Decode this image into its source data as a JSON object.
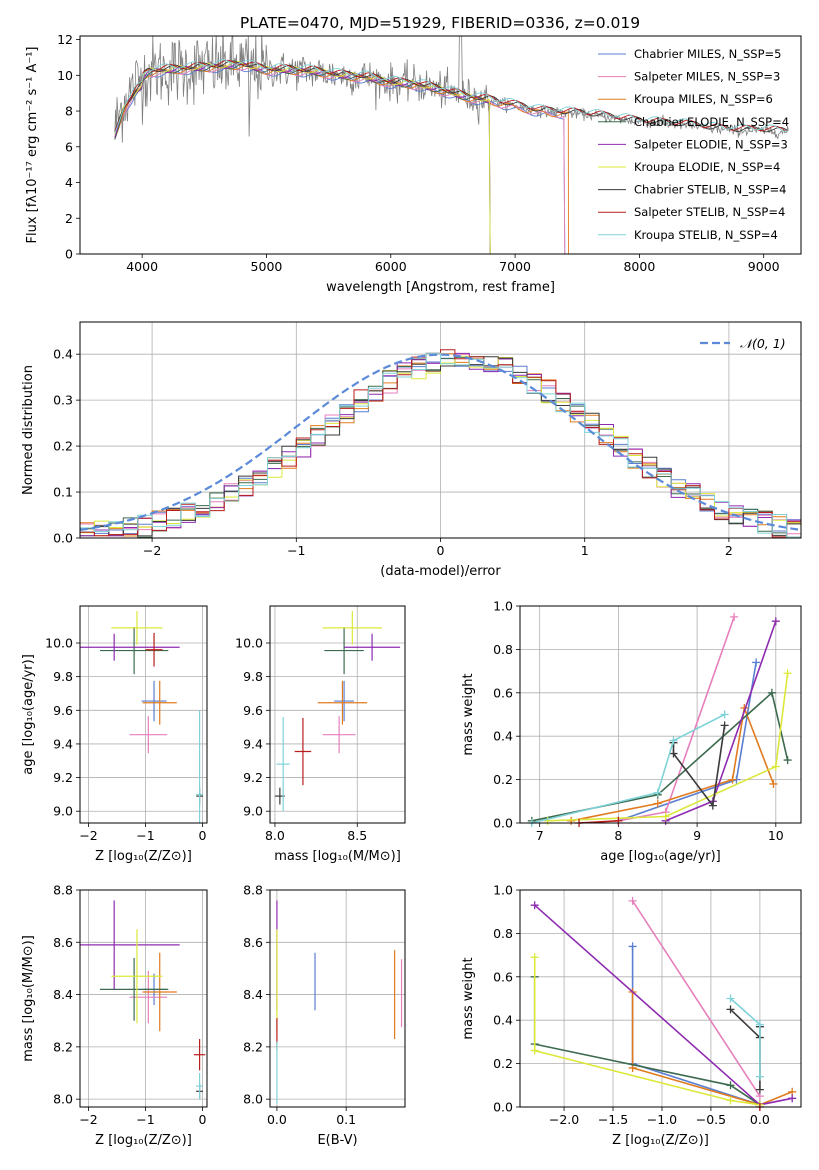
{
  "title": "PLATE=0470, MJD=51929, FIBERID=0336, z=0.019",
  "chart_data": [
    {
      "id": "spectrum",
      "type": "line",
      "xlabel": "wavelength [Angstrom, rest frame]",
      "ylabel": "Flux [fλ10⁻¹⁷ erg cm⁻² s⁻¹ A⁻¹]",
      "xlim": [
        3500,
        9300
      ],
      "ylim": [
        0,
        12.2
      ],
      "xticks": [
        4000,
        5000,
        6000,
        7000,
        8000,
        9000
      ],
      "yticks": [
        0,
        2,
        4,
        6,
        8,
        10,
        12
      ],
      "grid": false,
      "legend": "top-right",
      "data_continuum": {
        "x": [
          3780,
          3850,
          3950,
          4050,
          4200,
          4400,
          4600,
          4800,
          5000,
          5200,
          5400,
          5600,
          5800,
          6000,
          6200,
          6400,
          6600,
          6800,
          7000,
          7200,
          7400,
          7600,
          7800,
          8000,
          8200,
          8400,
          8600,
          8800,
          9000,
          9200
        ],
        "y": [
          7.0,
          8.5,
          9.5,
          10.2,
          10.3,
          10.4,
          10.5,
          10.6,
          10.3,
          10.3,
          10.2,
          10.0,
          9.9,
          9.6,
          9.5,
          9.2,
          8.8,
          8.6,
          8.3,
          8.0,
          7.9,
          7.8,
          7.6,
          7.4,
          7.3,
          7.2,
          7.0,
          6.9,
          6.9,
          6.8
        ]
      },
      "series": [
        {
          "name": "Chabrier MILES, N_SSP=5",
          "color": "#5b7fd1",
          "x_end": 7400
        },
        {
          "name": "Salpeter MILES, N_SSP=3",
          "color": "#e67fbc",
          "x_end": 7400
        },
        {
          "name": "Kroupa MILES, N_SSP=6",
          "color": "#e07b1f",
          "x_end": 7430
        },
        {
          "name": "Chabrier ELODIE, N_SSP=4",
          "color": "#3d6b4f",
          "x_end": 6800
        },
        {
          "name": "Salpeter ELODIE, N_SSP=3",
          "color": "#8e2bb0",
          "x_end": 6800
        },
        {
          "name": "Kroupa ELODIE, N_SSP=4",
          "color": "#dbe83a",
          "x_end": 6800
        },
        {
          "name": "Chabrier STELIB, N_SSP=4",
          "color": "#3a3a3a",
          "x_end": 9200
        },
        {
          "name": "Salpeter STELIB, N_SSP=4",
          "color": "#b81e1e",
          "x_end": 9200
        },
        {
          "name": "Kroupa STELIB, N_SSP=4",
          "color": "#7fd3d8",
          "x_end": 9200
        }
      ]
    },
    {
      "id": "residuals",
      "type": "bar",
      "xlabel": "(data-model)/error",
      "ylabel": "Normed distribution",
      "xlim": [
        -2.5,
        2.5
      ],
      "ylim": [
        0,
        0.47
      ],
      "xticks": [
        -2,
        -1,
        0,
        1,
        2
      ],
      "yticks": [
        0.0,
        0.1,
        0.2,
        0.3,
        0.4
      ],
      "grid": true,
      "legend": "top-right",
      "legend_label": "𝒩(0, 1)",
      "gaussian_color": "#5b8bd8",
      "bin_width": 0.1,
      "colors": [
        "#5b7fd1",
        "#e67fbc",
        "#e07b1f",
        "#3d6b4f",
        "#8e2bb0",
        "#dbe83a",
        "#3a3a3a",
        "#b81e1e",
        "#7fd3d8"
      ]
    },
    {
      "id": "age-vs-Z",
      "type": "scatter",
      "xlabel": "Z [log₁₀(Z/Z⊙)]",
      "ylabel": "age  [log₁₀(age/yr)]",
      "xlim": [
        -2.15,
        0.08
      ],
      "ylim": [
        8.93,
        10.22
      ],
      "xticks": [
        -2,
        -1,
        0
      ],
      "yticks": [
        9.0,
        9.2,
        9.4,
        9.6,
        9.8,
        10.0
      ],
      "grid": true,
      "points": [
        {
          "x": -0.85,
          "xerr": 0.22,
          "y": 9.655,
          "yerr": 0.12,
          "color": "#5b7fd1"
        },
        {
          "x": -0.95,
          "xerr": 0.33,
          "y": 9.455,
          "yerr": 0.11,
          "color": "#e67fbc"
        },
        {
          "x": -0.75,
          "xerr": 0.3,
          "y": 9.645,
          "yerr": 0.13,
          "color": "#e07b1f"
        },
        {
          "x": -1.2,
          "xerr": 0.6,
          "y": 9.955,
          "yerr": 0.14,
          "color": "#3d6b4f"
        },
        {
          "x": -1.55,
          "xerr": 1.15,
          "y": 9.975,
          "yerr": 0.08,
          "color": "#8e2bb0"
        },
        {
          "x": -1.15,
          "xerr": 0.45,
          "y": 10.09,
          "yerr": 0.1,
          "color": "#dbe83a"
        },
        {
          "x": -0.05,
          "xerr": 0.06,
          "y": 9.09,
          "yerr": 0.05,
          "color": "#3a3a3a"
        },
        {
          "x": -0.85,
          "xerr": 0.15,
          "y": 9.96,
          "yerr": 0.1,
          "color": "#b81e1e"
        },
        {
          "x": -0.05,
          "xerr": 0.06,
          "y": 9.1,
          "yerr": 0.5,
          "color": "#7fd3d8"
        }
      ]
    },
    {
      "id": "age-vs-mass",
      "type": "scatter",
      "xlabel": "mass [log₁₀(M/M⊙)]",
      "ylabel": "",
      "xlim": [
        7.97,
        8.79
      ],
      "ylim": [
        8.93,
        10.22
      ],
      "xticks": [
        8.0,
        8.5
      ],
      "yticks": [
        9.0,
        9.2,
        9.4,
        9.6,
        9.8,
        10.0
      ],
      "grid": true,
      "points": [
        {
          "x": 8.42,
          "xerr": 0.06,
          "y": 9.655,
          "yerr": 0.12,
          "color": "#5b7fd1"
        },
        {
          "x": 8.39,
          "xerr": 0.1,
          "y": 9.455,
          "yerr": 0.11,
          "color": "#e67fbc"
        },
        {
          "x": 8.41,
          "xerr": 0.15,
          "y": 9.645,
          "yerr": 0.13,
          "color": "#e07b1f"
        },
        {
          "x": 8.42,
          "xerr": 0.12,
          "y": 9.955,
          "yerr": 0.14,
          "color": "#3d6b4f"
        },
        {
          "x": 8.59,
          "xerr": 0.17,
          "y": 9.975,
          "yerr": 0.08,
          "color": "#8e2bb0"
        },
        {
          "x": 8.47,
          "xerr": 0.18,
          "y": 10.09,
          "yerr": 0.1,
          "color": "#dbe83a"
        },
        {
          "x": 8.03,
          "xerr": 0.03,
          "y": 9.09,
          "yerr": 0.05,
          "color": "#3a3a3a"
        },
        {
          "x": 8.17,
          "xerr": 0.05,
          "y": 9.355,
          "yerr": 0.2,
          "color": "#b81e1e"
        },
        {
          "x": 8.05,
          "xerr": 0.04,
          "y": 9.28,
          "yerr": 0.28,
          "color": "#7fd3d8"
        }
      ]
    },
    {
      "id": "weight-vs-age",
      "type": "line",
      "xlabel": "age  [log₁₀(age/yr)]",
      "ylabel": "mass weight",
      "xlim": [
        6.75,
        10.32
      ],
      "ylim": [
        0.0,
        1.0
      ],
      "xticks": [
        7,
        8,
        9,
        10
      ],
      "yticks": [
        0.0,
        0.2,
        0.4,
        0.6,
        0.8,
        1.0
      ],
      "grid": true,
      "series": [
        {
          "color": "#5b7fd1",
          "x": [
            8.0,
            9.5,
            9.75
          ],
          "y": [
            0.01,
            0.2,
            0.74
          ]
        },
        {
          "color": "#e67fbc",
          "x": [
            8.0,
            8.6,
            9.47
          ],
          "y": [
            0.01,
            0.05,
            0.95
          ]
        },
        {
          "color": "#e07b1f",
          "x": [
            7.4,
            8.5,
            9.45,
            9.6,
            9.97
          ],
          "y": [
            0.01,
            0.09,
            0.2,
            0.53,
            0.18
          ]
        },
        {
          "color": "#3d6b4f",
          "x": [
            6.9,
            8.5,
            9.95,
            10.15
          ],
          "y": [
            0.01,
            0.13,
            0.6,
            0.29
          ]
        },
        {
          "color": "#8e2bb0",
          "x": [
            8.6,
            9.2,
            10.0
          ],
          "y": [
            0.01,
            0.1,
            0.93
          ]
        },
        {
          "color": "#dbe83a",
          "x": [
            7.1,
            8.6,
            10.0,
            10.15
          ],
          "y": [
            0.01,
            0.03,
            0.26,
            0.69
          ]
        },
        {
          "color": "#3a3a3a",
          "x": [
            8.7,
            8.7,
            9.2,
            9.35
          ],
          "y": [
            0.37,
            0.32,
            0.08,
            0.45
          ]
        },
        {
          "color": "#b81e1e",
          "x": [
            7.5,
            8.0
          ],
          "y": [
            0.0,
            0.01
          ]
        },
        {
          "color": "#7fd3d8",
          "x": [
            6.9,
            8.5,
            8.7,
            9.35
          ],
          "y": [
            0.0,
            0.14,
            0.38,
            0.5
          ]
        }
      ]
    },
    {
      "id": "mass-vs-Z",
      "type": "scatter",
      "xlabel": "Z [log₁₀(Z/Z⊙)]",
      "ylabel": "mass [log₁₀(M/M⊙)]",
      "xlim": [
        -2.15,
        0.08
      ],
      "ylim": [
        7.97,
        8.8
      ],
      "xticks": [
        -2,
        -1,
        0
      ],
      "yticks": [
        8.0,
        8.2,
        8.4,
        8.6,
        8.8
      ],
      "grid": true,
      "points": [
        {
          "x": -0.85,
          "xerr": 0.22,
          "y": 8.42,
          "yerr": 0.06,
          "color": "#5b7fd1"
        },
        {
          "x": -0.95,
          "xerr": 0.33,
          "y": 8.39,
          "yerr": 0.1,
          "color": "#e67fbc"
        },
        {
          "x": -0.75,
          "xerr": 0.3,
          "y": 8.41,
          "yerr": 0.15,
          "color": "#e07b1f"
        },
        {
          "x": -1.2,
          "xerr": 0.6,
          "y": 8.42,
          "yerr": 0.12,
          "color": "#3d6b4f"
        },
        {
          "x": -1.55,
          "xerr": 1.15,
          "y": 8.59,
          "yerr": 0.17,
          "color": "#8e2bb0"
        },
        {
          "x": -1.15,
          "xerr": 0.45,
          "y": 8.47,
          "yerr": 0.18,
          "color": "#dbe83a"
        },
        {
          "x": -0.05,
          "xerr": 0.06,
          "y": 8.03,
          "yerr": 0.03,
          "color": "#3a3a3a"
        },
        {
          "x": -0.05,
          "xerr": 0.1,
          "y": 8.17,
          "yerr": 0.06,
          "color": "#b81e1e"
        },
        {
          "x": -0.05,
          "xerr": 0.06,
          "y": 8.05,
          "yerr": 0.05,
          "color": "#7fd3d8"
        }
      ]
    },
    {
      "id": "mass-vs-EBV",
      "type": "scatter",
      "xlabel": "E(B-V)",
      "ylabel": "",
      "xlim": [
        -0.01,
        0.185
      ],
      "ylim": [
        7.97,
        8.8
      ],
      "xticks": [
        0.0,
        0.1
      ],
      "yticks": [
        8.0,
        8.2,
        8.4,
        8.6,
        8.8
      ],
      "grid": true,
      "points": [
        {
          "x": 0.055,
          "y": 8.45,
          "yerr": 0.11,
          "color": "#5b7fd1"
        },
        {
          "x": 0.18,
          "y": 8.405,
          "yerr": 0.13,
          "color": "#e67fbc"
        },
        {
          "x": 0.17,
          "y": 8.4,
          "yerr": 0.17,
          "color": "#e07b1f"
        },
        {
          "x": 0.0,
          "y": 8.55,
          "yerr": 0.21,
          "color": "#8e2bb0"
        },
        {
          "x": 0.0,
          "y": 8.45,
          "yerr": 0.2,
          "color": "#dbe83a"
        },
        {
          "x": 0.0,
          "y": 8.25,
          "yerr": 0.06,
          "color": "#b81e1e"
        },
        {
          "x": 0.0,
          "y": 8.1,
          "yerr": 0.12,
          "color": "#7fd3d8"
        }
      ]
    },
    {
      "id": "weight-vs-Z",
      "type": "line",
      "xlabel": "Z [log₁₀(Z/Z⊙)]",
      "ylabel": "mass weight",
      "xlim": [
        -2.45,
        0.42
      ],
      "ylim": [
        0.0,
        1.0
      ],
      "xticks": [
        -2.0,
        -1.5,
        -1.0,
        -0.5,
        0.0
      ],
      "yticks": [
        0.0,
        0.2,
        0.4,
        0.6,
        0.8,
        1.0
      ],
      "grid": true,
      "series": [
        {
          "color": "#5b7fd1",
          "x": [
            -1.3,
            -1.3,
            0.0
          ],
          "y": [
            0.74,
            0.2,
            0.01
          ]
        },
        {
          "color": "#e67fbc",
          "x": [
            -1.3,
            0.0
          ],
          "y": [
            0.95,
            0.05
          ]
        },
        {
          "color": "#e07b1f",
          "x": [
            -1.3,
            -1.3,
            0.0,
            0.33
          ],
          "y": [
            0.53,
            0.18,
            0.01,
            0.07
          ]
        },
        {
          "color": "#3d6b4f",
          "x": [
            -2.3,
            -2.3,
            -0.3,
            0.0
          ],
          "y": [
            0.6,
            0.29,
            0.1,
            0.01
          ]
        },
        {
          "color": "#8e2bb0",
          "x": [
            -2.3,
            0.0,
            0.33
          ],
          "y": [
            0.93,
            0.01,
            0.04
          ]
        },
        {
          "color": "#dbe83a",
          "x": [
            -2.3,
            -2.3,
            -0.3,
            0.0
          ],
          "y": [
            0.69,
            0.26,
            0.03,
            0.01
          ]
        },
        {
          "color": "#3a3a3a",
          "x": [
            -0.3,
            0.0,
            0.0,
            0.0
          ],
          "y": [
            0.45,
            0.32,
            0.08,
            0.37
          ]
        },
        {
          "color": "#b81e1e",
          "x": [
            0.0
          ],
          "y": [
            0.0
          ]
        },
        {
          "color": "#7fd3d8",
          "x": [
            -0.3,
            0.0,
            0.0
          ],
          "y": [
            0.5,
            0.38,
            0.14
          ]
        }
      ]
    }
  ]
}
